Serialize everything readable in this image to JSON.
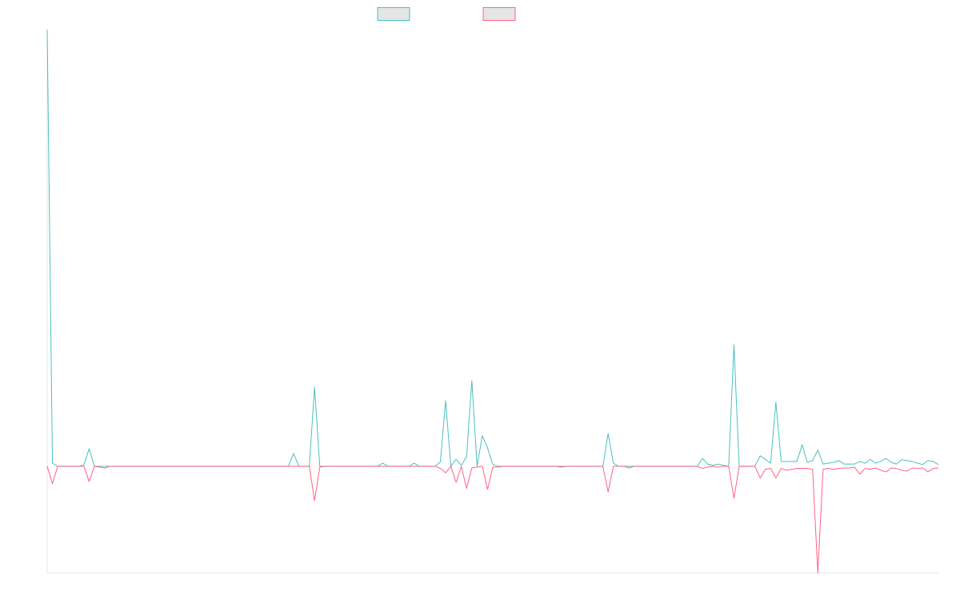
{
  "chart_data": {
    "type": "line",
    "categories": [
      null,
      null,
      null,
      null,
      null,
      null,
      null,
      null,
      null,
      null,
      null,
      null,
      null,
      null,
      null,
      null,
      null,
      null,
      null,
      null,
      null,
      null,
      null,
      null,
      null,
      null,
      null,
      null,
      null,
      null,
      null,
      null,
      null,
      null,
      null,
      null,
      null,
      null,
      null,
      null,
      null,
      null,
      null,
      null,
      null,
      null,
      null,
      null,
      null,
      null,
      null,
      null,
      null,
      null,
      null,
      null,
      null,
      null,
      null,
      null,
      null,
      null,
      null,
      null,
      null,
      null,
      null,
      null,
      null,
      null,
      null,
      null,
      null,
      null,
      null,
      null,
      null,
      null,
      null,
      null,
      null,
      null,
      null,
      null,
      null,
      null,
      null,
      null,
      null,
      null,
      null,
      null,
      null,
      null,
      null,
      null,
      null,
      null,
      null,
      null,
      null,
      null,
      null,
      null,
      null,
      null,
      null,
      null,
      null,
      null,
      null,
      null,
      null,
      null,
      null,
      null,
      null,
      null,
      null,
      null,
      null,
      null,
      null,
      null,
      null,
      null,
      null,
      null,
      null,
      null,
      null,
      null,
      null,
      null,
      null,
      null,
      null,
      null,
      null,
      null,
      null,
      null,
      null,
      null,
      null,
      null,
      null,
      null,
      null,
      null,
      null,
      null,
      null,
      null,
      null,
      null,
      null,
      null,
      null,
      null,
      null,
      null,
      null,
      null,
      null,
      null,
      null,
      null,
      null,
      null,
      null
    ],
    "series": [
      {
        "color": "#4bc0c0",
        "values": [
          100,
          0.7,
          0,
          0,
          0,
          0,
          0,
          0.3,
          4.0,
          0,
          0,
          0,
          0,
          0,
          0,
          0,
          0,
          0,
          0,
          0,
          0,
          0,
          0,
          0,
          0,
          0,
          0,
          0,
          0,
          0,
          0,
          0,
          0,
          0,
          0,
          0,
          0,
          0,
          0,
          0,
          0,
          0,
          0,
          0,
          0,
          0,
          0,
          2.9,
          0,
          0,
          0,
          18.1,
          0,
          0,
          0,
          0,
          0,
          0,
          0,
          0,
          0,
          0,
          0,
          0,
          0.7,
          0,
          0,
          0,
          0,
          0,
          0.7,
          0,
          0,
          0,
          0,
          1.0,
          15.0,
          0,
          1.6,
          0.2,
          2.2,
          19.6,
          0,
          7.0,
          4.2,
          0.4,
          0,
          0,
          0,
          0,
          0,
          0,
          0,
          0,
          0,
          0,
          0,
          0,
          0,
          0,
          0,
          0,
          0,
          0,
          0,
          0,
          0,
          7.5,
          0.7,
          0,
          0,
          0,
          0,
          0,
          0,
          0,
          0,
          0,
          0,
          0,
          0,
          0,
          0,
          0,
          0,
          1.8,
          0.5,
          0.2,
          0.5,
          0.2,
          0,
          27.8,
          0,
          0,
          0,
          0,
          2.4,
          1.6,
          0.7,
          14.7,
          1.1,
          1.1,
          1.1,
          1.1,
          4.9,
          0.9,
          1.3,
          3.7,
          0.5,
          0.7,
          0.9,
          1.3,
          0.5,
          0.5,
          0.5,
          1.1,
          0.7,
          1.6,
          0.7,
          1.1,
          1.8,
          0.9,
          0.5,
          1.5,
          1.3,
          1.1,
          0.7,
          0.4,
          1.3,
          1.1,
          0.4
        ]
      },
      {
        "color": "#ff6384",
        "values": [
          0,
          -4.0,
          0,
          0,
          0,
          0,
          0,
          0,
          -3.5,
          0,
          -0.2,
          -0.4,
          0,
          0,
          0,
          0,
          0,
          0,
          0,
          0,
          0,
          0,
          0,
          0,
          0,
          0,
          0,
          0,
          0,
          0,
          0,
          0,
          0,
          0,
          0,
          0,
          0,
          0,
          0,
          0,
          0,
          0,
          0,
          0,
          0,
          0,
          0,
          0,
          0,
          0,
          0,
          -7.9,
          -0.2,
          0,
          0,
          0,
          0,
          0,
          0,
          0,
          0,
          0,
          0,
          0,
          0,
          0,
          0,
          0,
          0,
          0,
          0,
          0,
          0,
          0,
          0,
          -0.5,
          -1.5,
          0,
          -3.7,
          0,
          -5.1,
          -0.4,
          -0.2,
          0,
          -5.3,
          -0.2,
          -0.2,
          0,
          0,
          0,
          0,
          0,
          0,
          0,
          0,
          0,
          0,
          0,
          -0.2,
          0,
          0,
          0,
          0,
          0,
          0,
          0,
          0,
          -5.9,
          0,
          0,
          0,
          -0.4,
          0,
          0,
          0,
          0,
          0,
          0,
          0,
          0,
          0,
          0,
          0,
          0,
          0,
          -0.5,
          -0.2,
          0,
          -0.2,
          0,
          0,
          -7.3,
          0,
          0,
          0,
          0,
          -2.7,
          -0.7,
          -0.5,
          -2.7,
          -0.5,
          -0.9,
          -0.7,
          -0.5,
          -0.5,
          -0.5,
          -0.7,
          -24.4,
          -0.7,
          -0.5,
          -0.7,
          -0.5,
          -0.4,
          -0.4,
          -0.2,
          -1.8,
          -0.5,
          -0.7,
          -0.4,
          -0.9,
          -1.3,
          -0.4,
          -0.5,
          -0.9,
          -1.1,
          -0.4,
          -0.5,
          -0.4,
          -1.3,
          -0.5,
          -0.4
        ]
      }
    ],
    "ylim": [
      -24.4,
      100
    ]
  }
}
